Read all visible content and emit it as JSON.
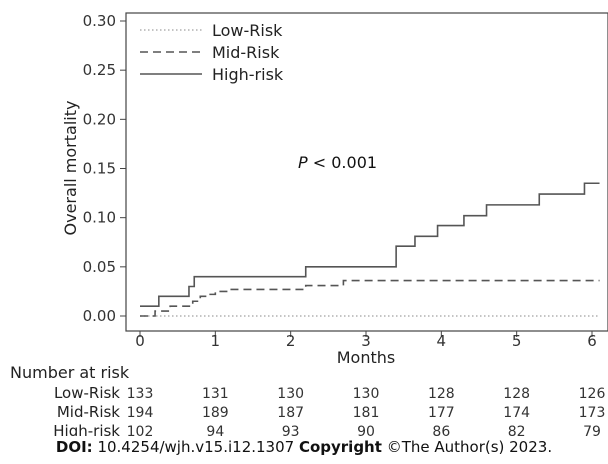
{
  "chart_data": {
    "type": "line",
    "step": true,
    "ylabel": "Overall mortality",
    "xlabel": "Months",
    "xlim": [
      0,
      6
    ],
    "ylim": [
      0,
      0.3
    ],
    "xticks": [
      0,
      1,
      2,
      3,
      4,
      5,
      6
    ],
    "yticks": [
      "0.00",
      "0.05",
      "0.10",
      "0.15",
      "0.20",
      "0.25",
      "0.30"
    ],
    "legend_position": "top-left",
    "annotation": {
      "italic": "P",
      "rest": " < 0.001"
    },
    "series": [
      {
        "name": "Low-Risk",
        "style": "dotted",
        "color": "#b0b0b0",
        "x": [
          0,
          6.1
        ],
        "y": [
          0.0,
          0.0
        ]
      },
      {
        "name": "Mid-Risk",
        "style": "dashed",
        "color": "#555555",
        "x": [
          0,
          0.2,
          0.4,
          0.7,
          0.8,
          0.9,
          1.0,
          1.2,
          2.2,
          2.7,
          6.1
        ],
        "y": [
          0.0,
          0.005,
          0.01,
          0.015,
          0.02,
          0.022,
          0.025,
          0.027,
          0.031,
          0.036,
          0.036
        ]
      },
      {
        "name": "High-risk",
        "style": "solid",
        "color": "#555555",
        "x": [
          0,
          0.25,
          0.65,
          0.72,
          2.2,
          3.4,
          3.65,
          3.95,
          4.3,
          4.6,
          5.3,
          5.9,
          6.1
        ],
        "y": [
          0.01,
          0.02,
          0.03,
          0.04,
          0.05,
          0.071,
          0.081,
          0.092,
          0.102,
          0.113,
          0.124,
          0.135,
          0.135
        ]
      }
    ]
  },
  "risk_table": {
    "title": "Number at risk",
    "rows": [
      {
        "label": "Low-Risk",
        "values": [
          "133",
          "131",
          "130",
          "130",
          "128",
          "128",
          "126"
        ]
      },
      {
        "label": "Mid-Risk",
        "values": [
          "194",
          "189",
          "187",
          "181",
          "177",
          "174",
          "173"
        ]
      },
      {
        "label": "High-risk",
        "values": [
          "102",
          "94",
          "93",
          "90",
          "86",
          "82",
          "79"
        ]
      }
    ]
  },
  "footer": {
    "doi_label": "DOI:",
    "doi_value": " 10.4254/wjh.v15.i12.1307 ",
    "copyright_label": "Copyright",
    "copyright_value": " ©The Author(s) 2023."
  }
}
